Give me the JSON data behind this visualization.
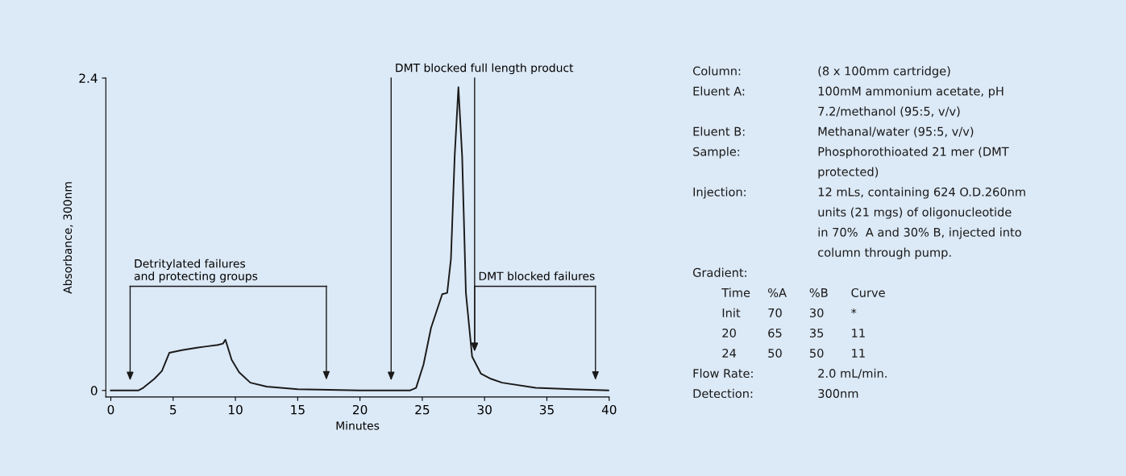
{
  "chart_data": [
    {
      "type": "line",
      "xlabel": "Minutes",
      "ylabel": "Absorbance, 300nm",
      "color": "#1a1a1a",
      "x": [
        0,
        2.2,
        2.6,
        3.5,
        4.1,
        4.7,
        5.7,
        7.0,
        8.6,
        9.0,
        9.2,
        9.7,
        10.3,
        11.2,
        12.5,
        15,
        20,
        24,
        24.5,
        25.1,
        25.7,
        26.6,
        27.0,
        27.3,
        27.6,
        27.9,
        28.2,
        28.5,
        29.0,
        29.7,
        30.5,
        31.4,
        34.1,
        37,
        40
      ],
      "values": [
        0,
        0,
        0.02,
        0.09,
        0.15,
        0.29,
        0.31,
        0.33,
        0.35,
        0.36,
        0.39,
        0.235,
        0.14,
        0.06,
        0.03,
        0.01,
        0,
        0,
        0.02,
        0.2,
        0.48,
        0.74,
        0.75,
        1.01,
        1.8,
        2.33,
        1.8,
        0.75,
        0.26,
        0.13,
        0.09,
        0.06,
        0.02,
        0.01,
        0
      ],
      "xlim": [
        -0.4,
        40
      ],
      "ylim": [
        -0.05,
        2.4
      ],
      "xticks": [
        0,
        5,
        10,
        15,
        20,
        25,
        30,
        35,
        40
      ],
      "yticks": [
        0,
        2.4
      ],
      "ref_lines": [
        {
          "axis": "x",
          "value": 1.55,
          "label": "Detritylated failures\nand protecting groups"
        },
        {
          "axis": "x",
          "value": 17.3,
          "label": null
        },
        {
          "axis": "x",
          "value": 22.5,
          "label": "DMT blocked full length product"
        },
        {
          "axis": "x",
          "value": 29.2,
          "label": "DMT blocked failures"
        },
        {
          "axis": "x",
          "value": 38.9,
          "label": null
        }
      ]
    },
    {
      "type": "other",
      "annotations": [
        "Column:\t(8 x 100mm cartridge)",
        "Eluent A:\t100mM ammonium acetate, pH",
        "\t7.2/methanol (95:5, v/v)",
        "Eluent B:\tMethanal/water (95:5, v/v)",
        "Sample:\tPhosphorothioated 21 mer (DMT",
        "\tprotected)",
        "Injection:\t12 mLs, containing 624 O.D.260nm",
        "\tunits (21 mgs) of oligonucleotide",
        "\tin 70%  A and 30% B, injected into",
        "\tcolumn through pump.",
        "Gradient:",
        "\tTime\t%A\t%B\tCurve",
        "\tInit\t70\t30\t*",
        "\t20\t65\t35\t11",
        "\t24\t50\t50\t11",
        "Flow Rate:\t2.0 mL/min.",
        "Detection:\t300nm"
      ]
    }
  ]
}
